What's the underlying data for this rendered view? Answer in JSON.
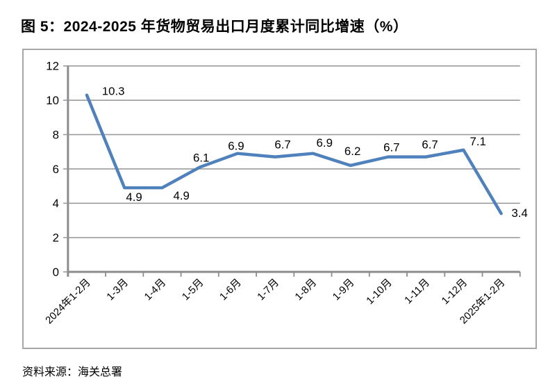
{
  "page": {
    "title": "图 5：2024-2025 年货物贸易出口月度累计同比增速（%）",
    "source": "资料来源：海关总署"
  },
  "chart_data": {
    "type": "line",
    "title": "图 5：2024-2025 年货物贸易出口月度累计同比增速（%）",
    "categories": [
      "2024年1-2月",
      "1-3月",
      "1-4月",
      "1-5月",
      "1-6月",
      "1-7月",
      "1-8月",
      "1-9月",
      "1-10月",
      "1-11月",
      "1-12月",
      "2025年1-2月"
    ],
    "values": [
      10.3,
      4.9,
      4.9,
      6.1,
      6.9,
      6.7,
      6.9,
      6.2,
      6.7,
      6.7,
      7.1,
      3.4
    ],
    "data_labels": [
      "10.3",
      "4.9",
      "4.9",
      "6.1",
      "6.9",
      "6.7",
      "6.9",
      "6.2",
      "6.7",
      "6.7",
      "7.1",
      "3.4"
    ],
    "ylim": [
      0,
      12
    ],
    "yticks": [
      0,
      2,
      4,
      6,
      8,
      10,
      12
    ],
    "grid": true,
    "legend_position": "none",
    "xlabel": "",
    "ylabel": "",
    "colors": {
      "line": "#4F81BD",
      "gridline": "#9b9b9b",
      "axis": "#8c8c8c",
      "frame_border": "#a6a6a6",
      "text": "#000000"
    },
    "source": "资料来源：海关总署"
  }
}
